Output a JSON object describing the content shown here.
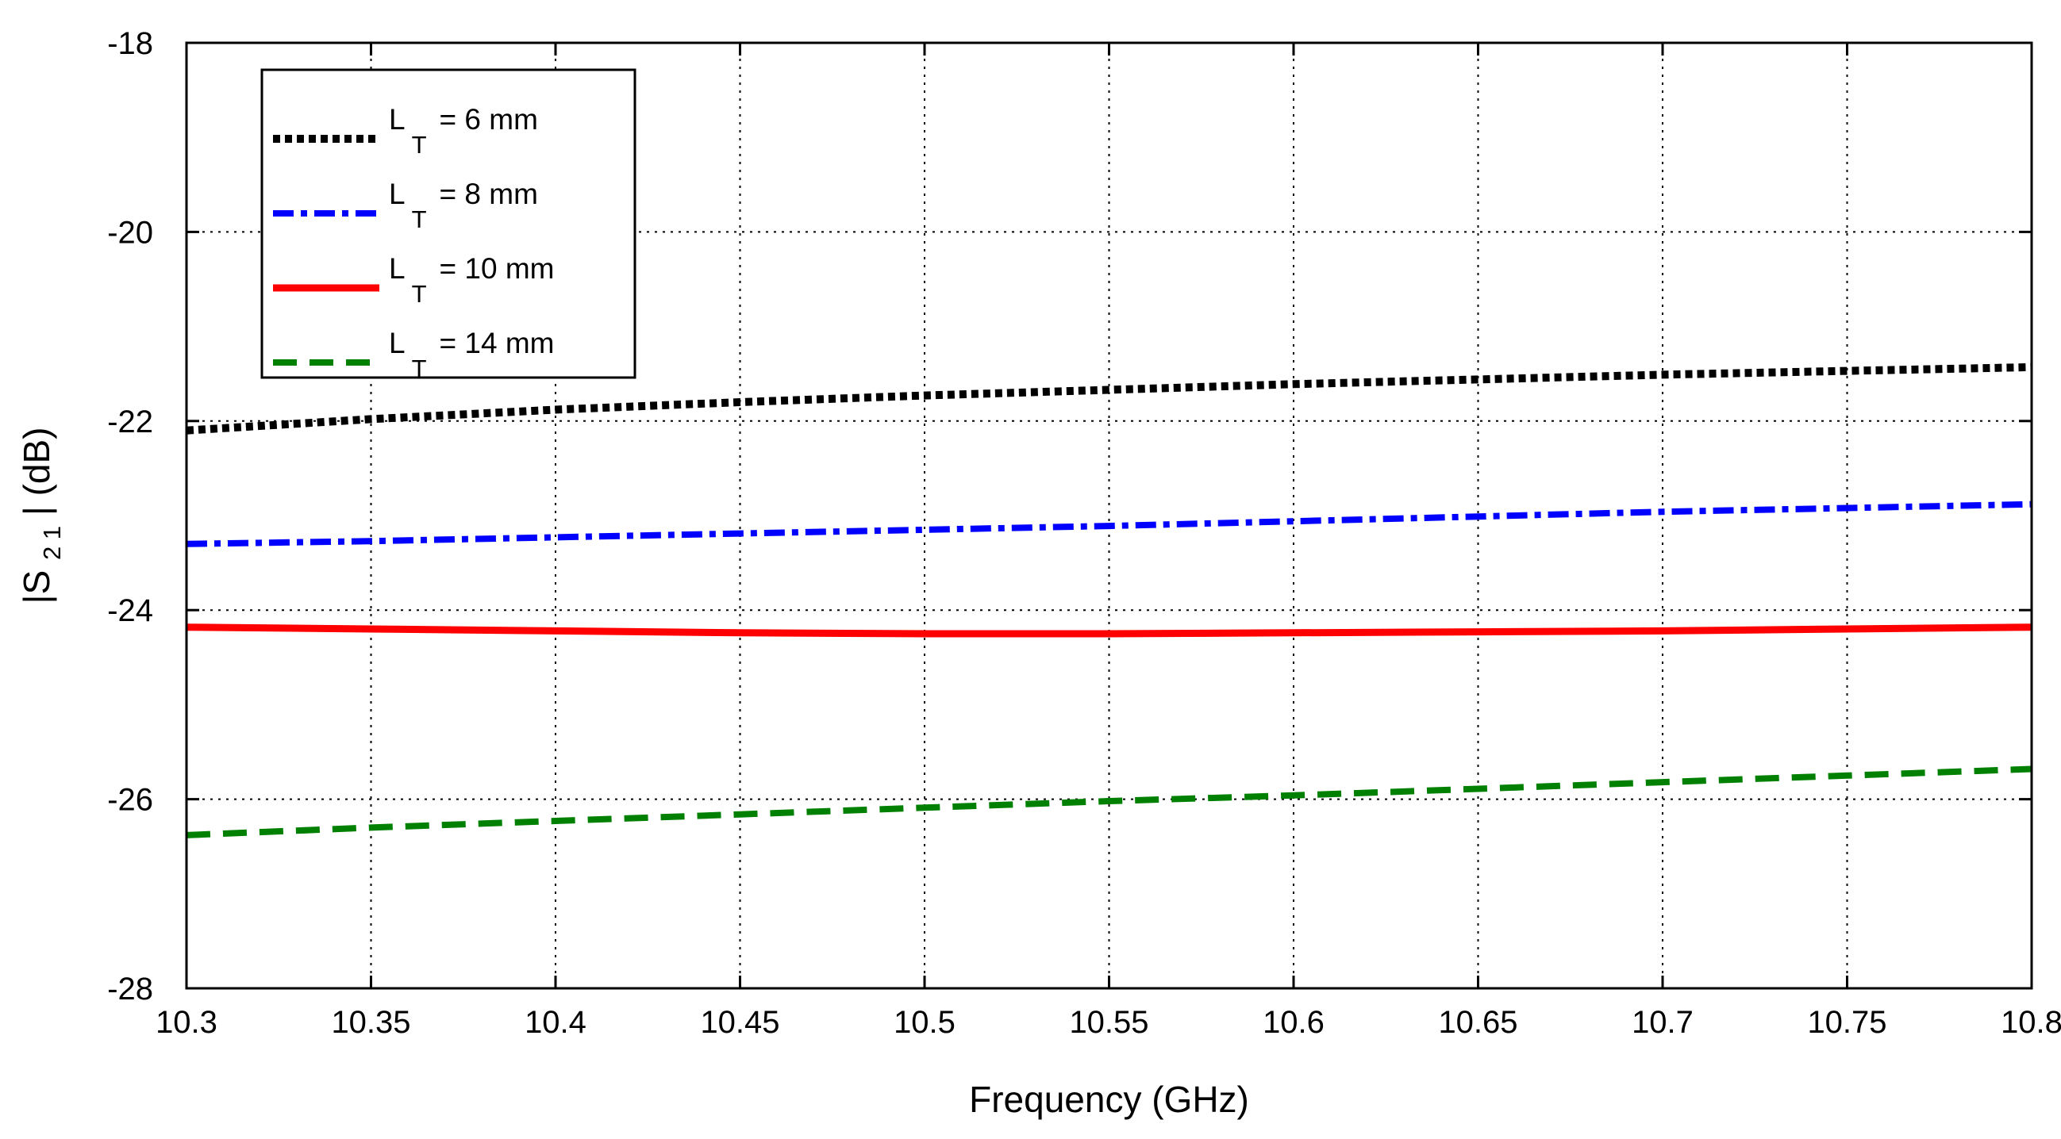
{
  "chart_data": {
    "type": "line",
    "title": "",
    "xlabel": "Frequency (GHz)",
    "ylabel": {
      "prefix": "|S",
      "subscript": "2 1",
      "suffix": "| (dB)"
    },
    "xlim": [
      10.3,
      10.8
    ],
    "ylim": [
      -28,
      -18
    ],
    "grid": true,
    "x_ticks": [
      10.3,
      10.35,
      10.4,
      10.45,
      10.5,
      10.55,
      10.6,
      10.65,
      10.7,
      10.75,
      10.8
    ],
    "x_tick_labels": [
      "10.3",
      "10.35",
      "10.4",
      "10.45",
      "10.5",
      "10.55",
      "10.6",
      "10.65",
      "10.7",
      "10.75",
      "10.8"
    ],
    "y_ticks": [
      -18,
      -20,
      -22,
      -24,
      -26,
      -28
    ],
    "y_tick_labels": [
      "-18",
      "-20",
      "-22",
      "-24",
      "-26",
      "-28"
    ],
    "legend_position": "top-left",
    "x": [
      10.3,
      10.35,
      10.4,
      10.45,
      10.5,
      10.55,
      10.6,
      10.65,
      10.7,
      10.75,
      10.8
    ],
    "series": [
      {
        "name": "L_T = 6 mm",
        "label_main": "L",
        "label_sub": "T",
        "label_value": "= 6 mm",
        "color": "#000000",
        "style": "dotted",
        "values": [
          -22.1,
          -21.98,
          -21.88,
          -21.8,
          -21.73,
          -21.67,
          -21.61,
          -21.56,
          -21.51,
          -21.47,
          -21.43
        ]
      },
      {
        "name": "L_T = 8 mm",
        "label_main": "L",
        "label_sub": "T",
        "label_value": "= 8 mm",
        "color": "#0000ff",
        "style": "dashdot",
        "values": [
          -23.3,
          -23.27,
          -23.23,
          -23.19,
          -23.15,
          -23.11,
          -23.06,
          -23.01,
          -22.96,
          -22.92,
          -22.88
        ]
      },
      {
        "name": "L_T = 10 mm",
        "label_main": "L",
        "label_sub": "T",
        "label_value": "= 10 mm",
        "color": "#ff0000",
        "style": "solid",
        "values": [
          -24.18,
          -24.2,
          -24.22,
          -24.24,
          -24.25,
          -24.25,
          -24.24,
          -24.23,
          -24.22,
          -24.2,
          -24.18
        ]
      },
      {
        "name": "L_T = 14 mm",
        "label_main": "L",
        "label_sub": "T",
        "label_value": "= 14 mm",
        "color": "#008000",
        "style": "dashed",
        "values": [
          -26.38,
          -26.3,
          -26.23,
          -26.16,
          -26.09,
          -26.02,
          -25.96,
          -25.89,
          -25.82,
          -25.75,
          -25.68
        ]
      }
    ]
  }
}
